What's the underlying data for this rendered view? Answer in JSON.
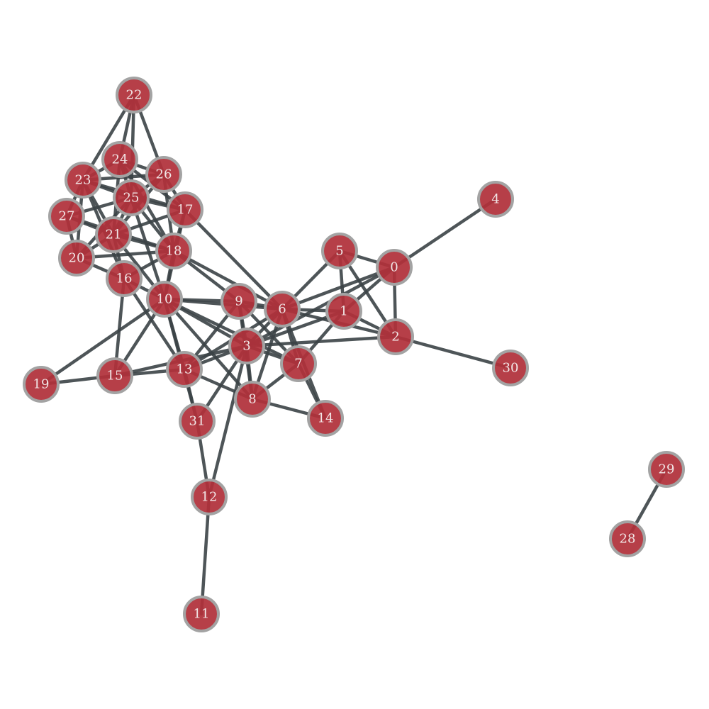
{
  "graph": {
    "nodes": [
      {
        "id": "0",
        "label": "0"
      },
      {
        "id": "1",
        "label": "1"
      },
      {
        "id": "2",
        "label": "2"
      },
      {
        "id": "3",
        "label": "3"
      },
      {
        "id": "4",
        "label": "4"
      },
      {
        "id": "5",
        "label": "5"
      },
      {
        "id": "6",
        "label": "6"
      },
      {
        "id": "7",
        "label": "7"
      },
      {
        "id": "8",
        "label": "8"
      },
      {
        "id": "9",
        "label": "9"
      },
      {
        "id": "10",
        "label": "10"
      },
      {
        "id": "11",
        "label": "11"
      },
      {
        "id": "12",
        "label": "12"
      },
      {
        "id": "13",
        "label": "13"
      },
      {
        "id": "14",
        "label": "14"
      },
      {
        "id": "15",
        "label": "15"
      },
      {
        "id": "16",
        "label": "16"
      },
      {
        "id": "17",
        "label": "17"
      },
      {
        "id": "18",
        "label": "18"
      },
      {
        "id": "19",
        "label": "19"
      },
      {
        "id": "20",
        "label": "20"
      },
      {
        "id": "21",
        "label": "21"
      },
      {
        "id": "22",
        "label": "22"
      },
      {
        "id": "23",
        "label": "23"
      },
      {
        "id": "24",
        "label": "24"
      },
      {
        "id": "25",
        "label": "25"
      },
      {
        "id": "26",
        "label": "26"
      },
      {
        "id": "27",
        "label": "27"
      },
      {
        "id": "28",
        "label": "28"
      },
      {
        "id": "29",
        "label": "29"
      },
      {
        "id": "30",
        "label": "30"
      },
      {
        "id": "31",
        "label": "31"
      }
    ],
    "edges": [
      [
        "0",
        "4"
      ],
      [
        "0",
        "5"
      ],
      [
        "0",
        "1"
      ],
      [
        "0",
        "2"
      ],
      [
        "0",
        "6"
      ],
      [
        "0",
        "3"
      ],
      [
        "5",
        "6"
      ],
      [
        "5",
        "1"
      ],
      [
        "5",
        "2"
      ],
      [
        "1",
        "6"
      ],
      [
        "1",
        "2"
      ],
      [
        "1",
        "7"
      ],
      [
        "1",
        "3"
      ],
      [
        "2",
        "6"
      ],
      [
        "2",
        "30"
      ],
      [
        "2",
        "3"
      ],
      [
        "6",
        "9"
      ],
      [
        "6",
        "3"
      ],
      [
        "6",
        "7"
      ],
      [
        "6",
        "8"
      ],
      [
        "6",
        "14"
      ],
      [
        "6",
        "17"
      ],
      [
        "6",
        "18"
      ],
      [
        "6",
        "10"
      ],
      [
        "6",
        "13"
      ],
      [
        "9",
        "3"
      ],
      [
        "9",
        "7"
      ],
      [
        "9",
        "10"
      ],
      [
        "9",
        "13"
      ],
      [
        "9",
        "18"
      ],
      [
        "9",
        "8"
      ],
      [
        "3",
        "13"
      ],
      [
        "3",
        "8"
      ],
      [
        "3",
        "31"
      ],
      [
        "3",
        "10"
      ],
      [
        "3",
        "15"
      ],
      [
        "3",
        "7"
      ],
      [
        "3",
        "12"
      ],
      [
        "7",
        "14"
      ],
      [
        "7",
        "8"
      ],
      [
        "7",
        "10"
      ],
      [
        "8",
        "14"
      ],
      [
        "8",
        "13"
      ],
      [
        "8",
        "10"
      ],
      [
        "13",
        "31"
      ],
      [
        "13",
        "15"
      ],
      [
        "13",
        "10"
      ],
      [
        "31",
        "12"
      ],
      [
        "31",
        "10"
      ],
      [
        "12",
        "11"
      ],
      [
        "10",
        "16"
      ],
      [
        "10",
        "18"
      ],
      [
        "10",
        "21"
      ],
      [
        "10",
        "15"
      ],
      [
        "10",
        "19"
      ],
      [
        "10",
        "25"
      ],
      [
        "10",
        "17"
      ],
      [
        "16",
        "15"
      ],
      [
        "16",
        "20"
      ],
      [
        "16",
        "21"
      ],
      [
        "16",
        "18"
      ],
      [
        "16",
        "23"
      ],
      [
        "16",
        "13"
      ],
      [
        "15",
        "19"
      ],
      [
        "22",
        "24"
      ],
      [
        "22",
        "26"
      ],
      [
        "22",
        "23"
      ],
      [
        "22",
        "25"
      ],
      [
        "23",
        "24"
      ],
      [
        "23",
        "25"
      ],
      [
        "23",
        "21"
      ],
      [
        "23",
        "27"
      ],
      [
        "23",
        "17"
      ],
      [
        "23",
        "20"
      ],
      [
        "23",
        "26"
      ],
      [
        "24",
        "25"
      ],
      [
        "24",
        "26"
      ],
      [
        "24",
        "21"
      ],
      [
        "24",
        "18"
      ],
      [
        "24",
        "17"
      ],
      [
        "26",
        "25"
      ],
      [
        "26",
        "17"
      ],
      [
        "26",
        "18"
      ],
      [
        "26",
        "21"
      ],
      [
        "25",
        "21"
      ],
      [
        "25",
        "27"
      ],
      [
        "25",
        "17"
      ],
      [
        "25",
        "18"
      ],
      [
        "25",
        "20"
      ],
      [
        "27",
        "21"
      ],
      [
        "27",
        "20"
      ],
      [
        "27",
        "18"
      ],
      [
        "21",
        "20"
      ],
      [
        "21",
        "18"
      ],
      [
        "21",
        "17"
      ],
      [
        "20",
        "18"
      ],
      [
        "17",
        "18"
      ],
      [
        "28",
        "29"
      ]
    ]
  }
}
